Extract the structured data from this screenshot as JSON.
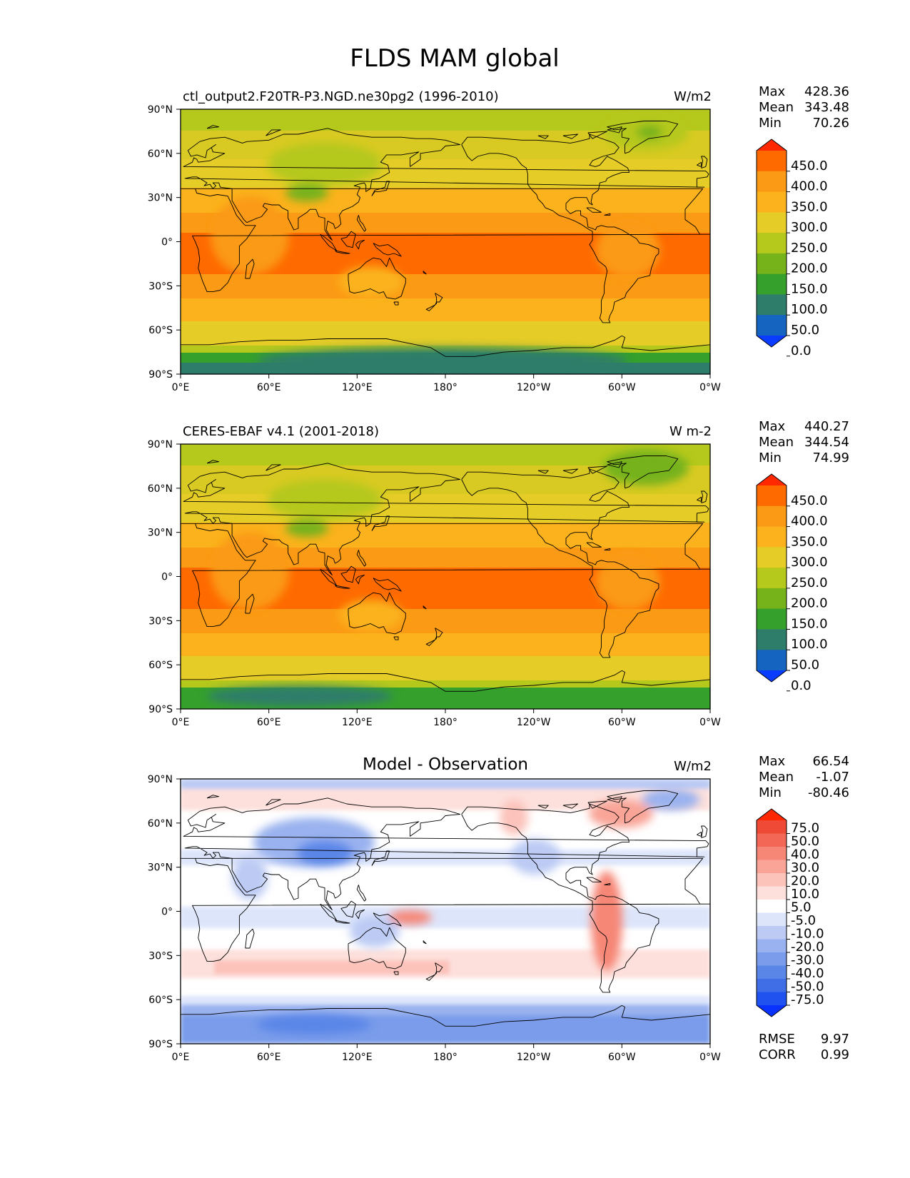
{
  "figure": {
    "title": "FLDS MAM global"
  },
  "axes": {
    "lat_labels": [
      "90°N",
      "60°N",
      "30°N",
      "0°",
      "30°S",
      "60°S",
      "90°S"
    ],
    "lon_labels": [
      "0°E",
      "60°E",
      "120°E",
      "180°",
      "120°W",
      "60°W",
      "0°W"
    ]
  },
  "panels": [
    {
      "id": "model",
      "left_title": "ctl_output2.F20TR-P3.NGD.ne30pg2 (1996-2010)",
      "center_title": "",
      "units": "W/m2",
      "stats": [
        {
          "label": "Max",
          "value": "428.36"
        },
        {
          "label": "Mean",
          "value": "343.48"
        },
        {
          "label": "Min",
          "value": "70.26"
        }
      ],
      "colorbar": {
        "colors": [
          "#0a3cff",
          "#1565c0",
          "#2e7d6b",
          "#35a02c",
          "#76b21a",
          "#b5c81c",
          "#e5cc26",
          "#fbb21c",
          "#fb9a14",
          "#fe6a00",
          "#ff2800"
        ],
        "labels": [
          "450.0",
          "400.0",
          "350.0",
          "300.0",
          "250.0",
          "200.0",
          "150.0",
          "100.0",
          "50.0",
          "0.0"
        ]
      }
    },
    {
      "id": "obs",
      "left_title": "CERES-EBAF v4.1 (2001-2018)",
      "center_title": "",
      "units": "W m-2",
      "stats": [
        {
          "label": "Max",
          "value": "440.27"
        },
        {
          "label": "Mean",
          "value": "344.54"
        },
        {
          "label": "Min",
          "value": "74.99"
        }
      ],
      "colorbar": {
        "colors": [
          "#0a3cff",
          "#1565c0",
          "#2e7d6b",
          "#35a02c",
          "#76b21a",
          "#b5c81c",
          "#e5cc26",
          "#fbb21c",
          "#fb9a14",
          "#fe6a00",
          "#ff2800"
        ],
        "labels": [
          "450.0",
          "400.0",
          "350.0",
          "300.0",
          "250.0",
          "200.0",
          "150.0",
          "100.0",
          "50.0",
          "0.0"
        ]
      }
    },
    {
      "id": "diff",
      "left_title": "",
      "center_title": "Model - Observation",
      "units": "W/m2",
      "stats": [
        {
          "label": "Max",
          "value": "66.54"
        },
        {
          "label": "Mean",
          "value": "-1.07"
        },
        {
          "label": "Min",
          "value": "-80.46"
        }
      ],
      "extra_stats": [
        {
          "label": "RMSE",
          "value": "9.97"
        },
        {
          "label": "CORR",
          "value": "0.99"
        }
      ],
      "colorbar": {
        "colors": [
          "#0a32ff",
          "#2052f0",
          "#3f6ee6",
          "#5a86e8",
          "#7a9cea",
          "#9ab2ef",
          "#bccaf4",
          "#dde5fb",
          "#ffffff",
          "#fde0dc",
          "#fcc3bb",
          "#f9a497",
          "#f68676",
          "#f26756",
          "#ee4a36",
          "#ff2800"
        ],
        "labels": [
          "75.0",
          "50.0",
          "40.0",
          "30.0",
          "20.0",
          "10.0",
          "5.0",
          "-5.0",
          "-10.0",
          "-20.0",
          "-30.0",
          "-40.0",
          "-50.0",
          "-75.0"
        ]
      }
    }
  ]
}
